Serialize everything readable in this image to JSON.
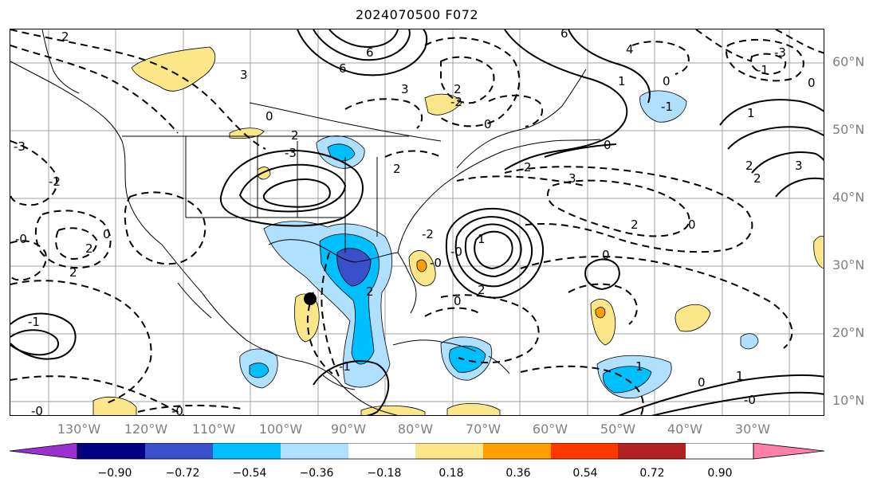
{
  "title": "2024070500 F072",
  "lat_labels": [
    "60°N",
    "50°N",
    "40°N",
    "30°N",
    "20°N",
    "10°N"
  ],
  "lon_labels": [
    "130°W",
    "120°W",
    "110°W",
    "100°W",
    "90°W",
    "80°W",
    "70°W",
    "60°W",
    "50°W",
    "40°W",
    "30°W"
  ],
  "colorbar": {
    "ticks": [
      "−0.90",
      "−0.72",
      "−0.54",
      "−0.36",
      "−0.18",
      "0.18",
      "0.36",
      "0.54",
      "0.72",
      "0.90"
    ],
    "colors": {
      "under": "#9b30d0",
      "bins": [
        "#000080",
        "#3a50c8",
        "#00bfff",
        "#b0e0ff",
        "#ffffff",
        "#fce68a",
        "#ffa000",
        "#ff3800",
        "#b22222"
      ],
      "over": "#ff7fac"
    }
  },
  "contour_labels": [
    "2",
    "6",
    "6",
    "6",
    "4",
    "3",
    "-3",
    "-1",
    "0",
    "2",
    "-2",
    "3",
    "0",
    "1",
    "-1",
    "0",
    "1",
    "2",
    "3",
    "-3",
    "2",
    "0",
    "-2",
    "2",
    "3",
    "2",
    "-3",
    "0",
    "2",
    "-0",
    "0",
    "2",
    "2",
    "-2",
    "-0",
    "-0",
    "1",
    "2",
    "0",
    "0",
    "2",
    "0",
    "-1",
    "2",
    "1",
    "1",
    "0",
    "-0",
    "-1",
    "-0",
    "-0"
  ],
  "marker": "station-dot"
}
